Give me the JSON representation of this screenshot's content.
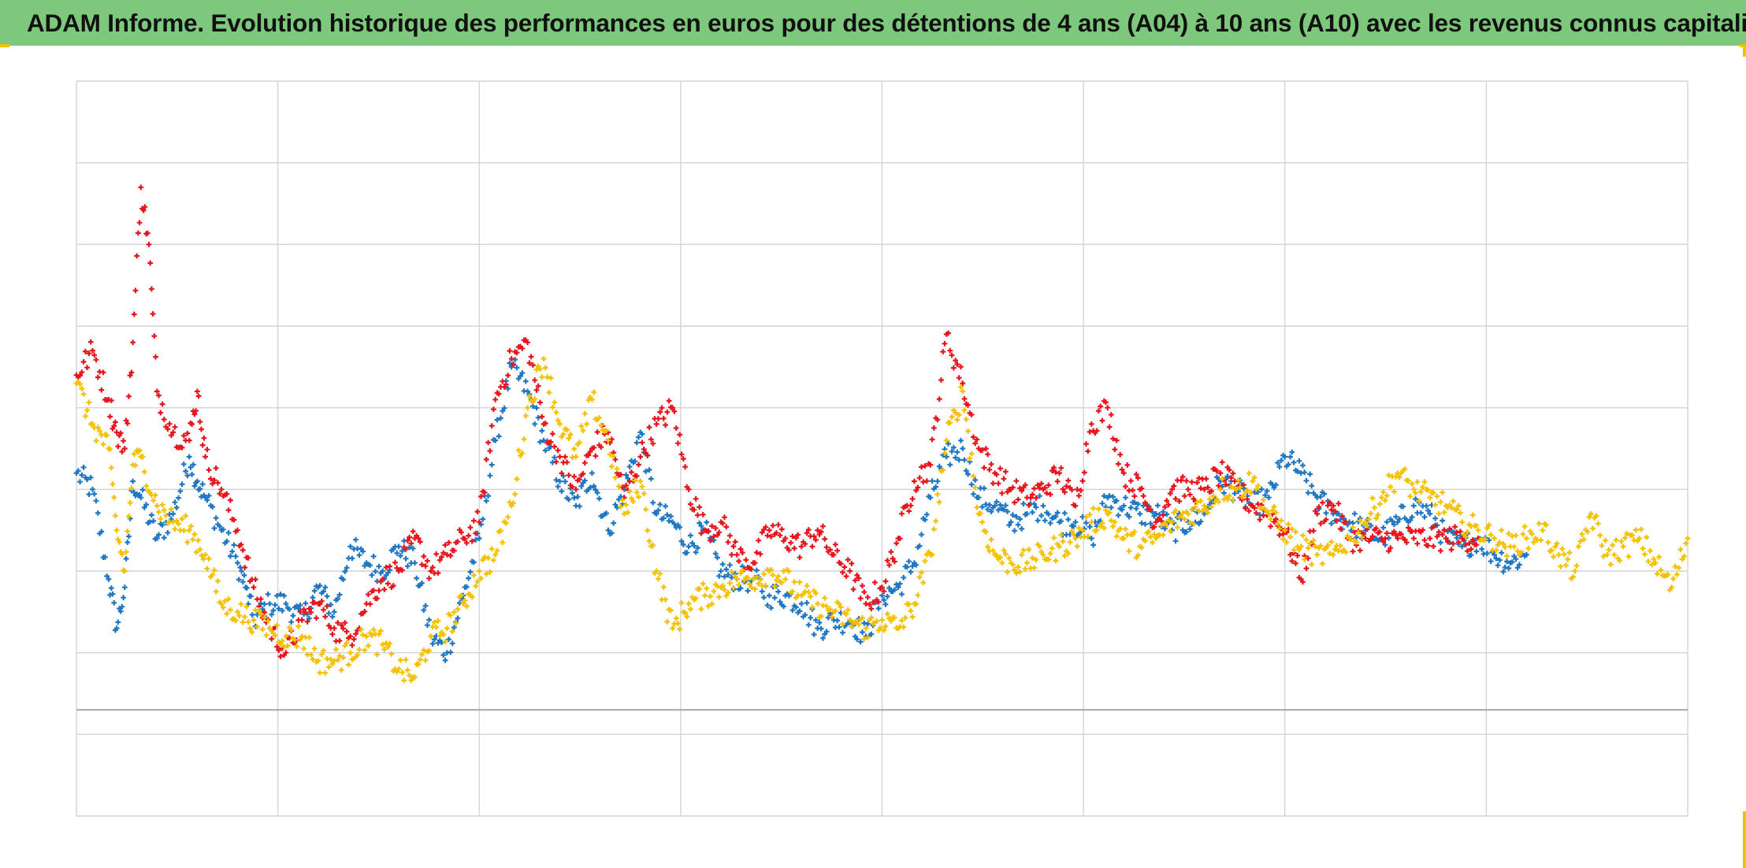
{
  "title": "ADAM Informe. Evolution historique des performances en euros pour des détentions de 4 ans (A04) à 10 ans (A10) avec les revenus connus capitalisés",
  "colors": {
    "title_bar": "#7dc87d",
    "series_blue": "#1f77c4",
    "series_red": "#e8141c",
    "series_gold": "#f5c000",
    "grid": "#d4d4d4",
    "zero_line": "#a6a6a6"
  },
  "chart_data": {
    "type": "scatter",
    "marker": "plus",
    "grid": true,
    "legend": "none",
    "title": "ADAM Informe. Evolution historique des performances en euros pour des détentions de 4 ans (A04) à 10 ans (A10) avec les revenus connus capitalisés",
    "xlabel": "",
    "ylabel": "",
    "xlim": [
      0,
      100
    ],
    "ylim": [
      -10,
      80
    ],
    "x_grid_steps": 12.5,
    "y_grid_steps": 9,
    "zero_line": 3,
    "series": [
      {
        "color": "#1f77c4",
        "x": [
          0,
          1,
          2,
          2.5,
          3,
          3.5,
          4,
          5,
          6,
          7,
          7.5,
          8,
          9,
          10,
          10.5,
          11,
          12,
          13,
          14,
          15,
          16,
          17,
          18,
          19,
          20,
          21,
          22,
          23,
          24,
          25,
          26,
          27,
          28,
          29,
          30,
          31,
          32,
          33,
          34,
          35,
          36,
          37,
          38,
          39,
          40,
          41,
          42,
          43,
          44,
          45,
          46,
          47,
          48,
          49,
          50,
          51,
          52,
          53,
          54,
          55,
          56,
          57,
          58,
          59,
          60,
          61,
          62,
          63,
          64,
          65,
          66,
          67,
          68,
          69,
          70,
          71,
          72,
          73,
          74,
          75,
          76,
          77,
          78,
          79,
          80,
          81,
          82,
          83,
          84,
          85,
          86,
          87,
          88,
          89,
          90
        ],
        "y": [
          32,
          30,
          19,
          13,
          18,
          31,
          29,
          24,
          27,
          34,
          31,
          29,
          25,
          21,
          18,
          14,
          16,
          16,
          14,
          18,
          15,
          23,
          21,
          20,
          23,
          21,
          12,
          10,
          17,
          24,
          36,
          45,
          42,
          36,
          31,
          28,
          32,
          25,
          30,
          37,
          27,
          26,
          23,
          25,
          20,
          19,
          19,
          17,
          17,
          16,
          13,
          14,
          14,
          12,
          17,
          18,
          21,
          29,
          34,
          35,
          29,
          28,
          26,
          27,
          28,
          26,
          26,
          24,
          29,
          28,
          27,
          27,
          25,
          26,
          27,
          31,
          30,
          28,
          29,
          34,
          32,
          29,
          27,
          26,
          25,
          24,
          26,
          28,
          27,
          24,
          23,
          24,
          22,
          21,
          22
        ]
      },
      {
        "color": "#e8141c",
        "x": [
          0,
          1,
          2,
          2.5,
          3,
          3.5,
          4,
          4.5,
          5,
          6,
          7,
          7.5,
          8,
          9,
          10,
          11,
          12,
          13,
          14,
          15,
          16,
          17,
          18,
          19,
          20,
          21,
          22,
          23,
          24,
          25,
          26,
          27,
          28,
          29,
          30,
          31,
          32,
          33,
          34,
          35,
          36,
          37,
          38,
          39,
          40,
          41,
          42,
          43,
          44,
          45,
          46,
          47,
          48,
          49,
          50,
          51,
          52,
          53,
          54,
          55,
          56,
          57,
          58,
          59,
          60,
          61,
          62,
          63,
          64,
          65,
          66,
          67,
          68,
          69,
          70,
          71,
          72,
          73,
          74,
          75,
          76,
          77,
          78,
          79,
          80,
          81,
          82,
          83,
          84,
          85,
          86,
          87
        ],
        "y": [
          44,
          47,
          41,
          37,
          35,
          48,
          67,
          60,
          42,
          37,
          36,
          42,
          34,
          30,
          25,
          18,
          13,
          10,
          14,
          16,
          13,
          12,
          16,
          19,
          20,
          24,
          20,
          22,
          24,
          26,
          41,
          46,
          48,
          38,
          34,
          30,
          35,
          37,
          29,
          34,
          38,
          40,
          30,
          25,
          26,
          22,
          21,
          25,
          24,
          23,
          25,
          22,
          20,
          16,
          18,
          24,
          31,
          33,
          49,
          43,
          35,
          32,
          30,
          29,
          30,
          32,
          28,
          38,
          40,
          32,
          30,
          26,
          30,
          30,
          30,
          32,
          30,
          28,
          27,
          25,
          19,
          27,
          28,
          24,
          24,
          24,
          24,
          24,
          24,
          24,
          24,
          24
        ]
      },
      {
        "color": "#f5c000",
        "x": [
          0,
          1,
          2,
          2.5,
          3,
          3.5,
          4,
          5,
          6,
          7,
          8,
          9,
          10,
          11,
          12,
          13,
          14,
          15,
          16,
          17,
          18,
          19,
          20,
          21,
          22,
          23,
          24,
          25,
          26,
          27,
          28,
          29,
          30,
          31,
          32,
          33,
          34,
          35,
          36,
          37,
          38,
          39,
          40,
          41,
          42,
          43,
          44,
          45,
          46,
          47,
          48,
          49,
          50,
          51,
          52,
          53,
          54,
          55,
          56,
          57,
          58,
          59,
          60,
          61,
          62,
          63,
          64,
          65,
          66,
          67,
          68,
          69,
          70,
          71,
          72,
          73,
          74,
          75,
          76,
          77,
          78,
          79,
          80,
          81,
          82,
          83,
          84,
          85,
          86,
          87,
          88,
          89,
          90,
          91,
          92,
          93,
          94,
          95,
          96,
          97,
          98,
          99,
          100
        ],
        "y": [
          43,
          38,
          35,
          25,
          20,
          33,
          34,
          28,
          26,
          25,
          22,
          16,
          15,
          14,
          13,
          12,
          12,
          9,
          9,
          10,
          12,
          11,
          8,
          7,
          12,
          13,
          16,
          20,
          22,
          28,
          40,
          46,
          38,
          34,
          41,
          36,
          27,
          31,
          20,
          13,
          16,
          17,
          18,
          19,
          19,
          20,
          19,
          17,
          16,
          15,
          14,
          13,
          14,
          13,
          16,
          22,
          36,
          42,
          27,
          22,
          21,
          21,
          22,
          23,
          24,
          26,
          27,
          24,
          23,
          24,
          26,
          27,
          28,
          30,
          30,
          31,
          27,
          25,
          23,
          22,
          22,
          24,
          26,
          29,
          32,
          30,
          29,
          28,
          26,
          25,
          24,
          23,
          24,
          25,
          22,
          20,
          27,
          22,
          23,
          24,
          21,
          18,
          24
        ]
      }
    ]
  }
}
